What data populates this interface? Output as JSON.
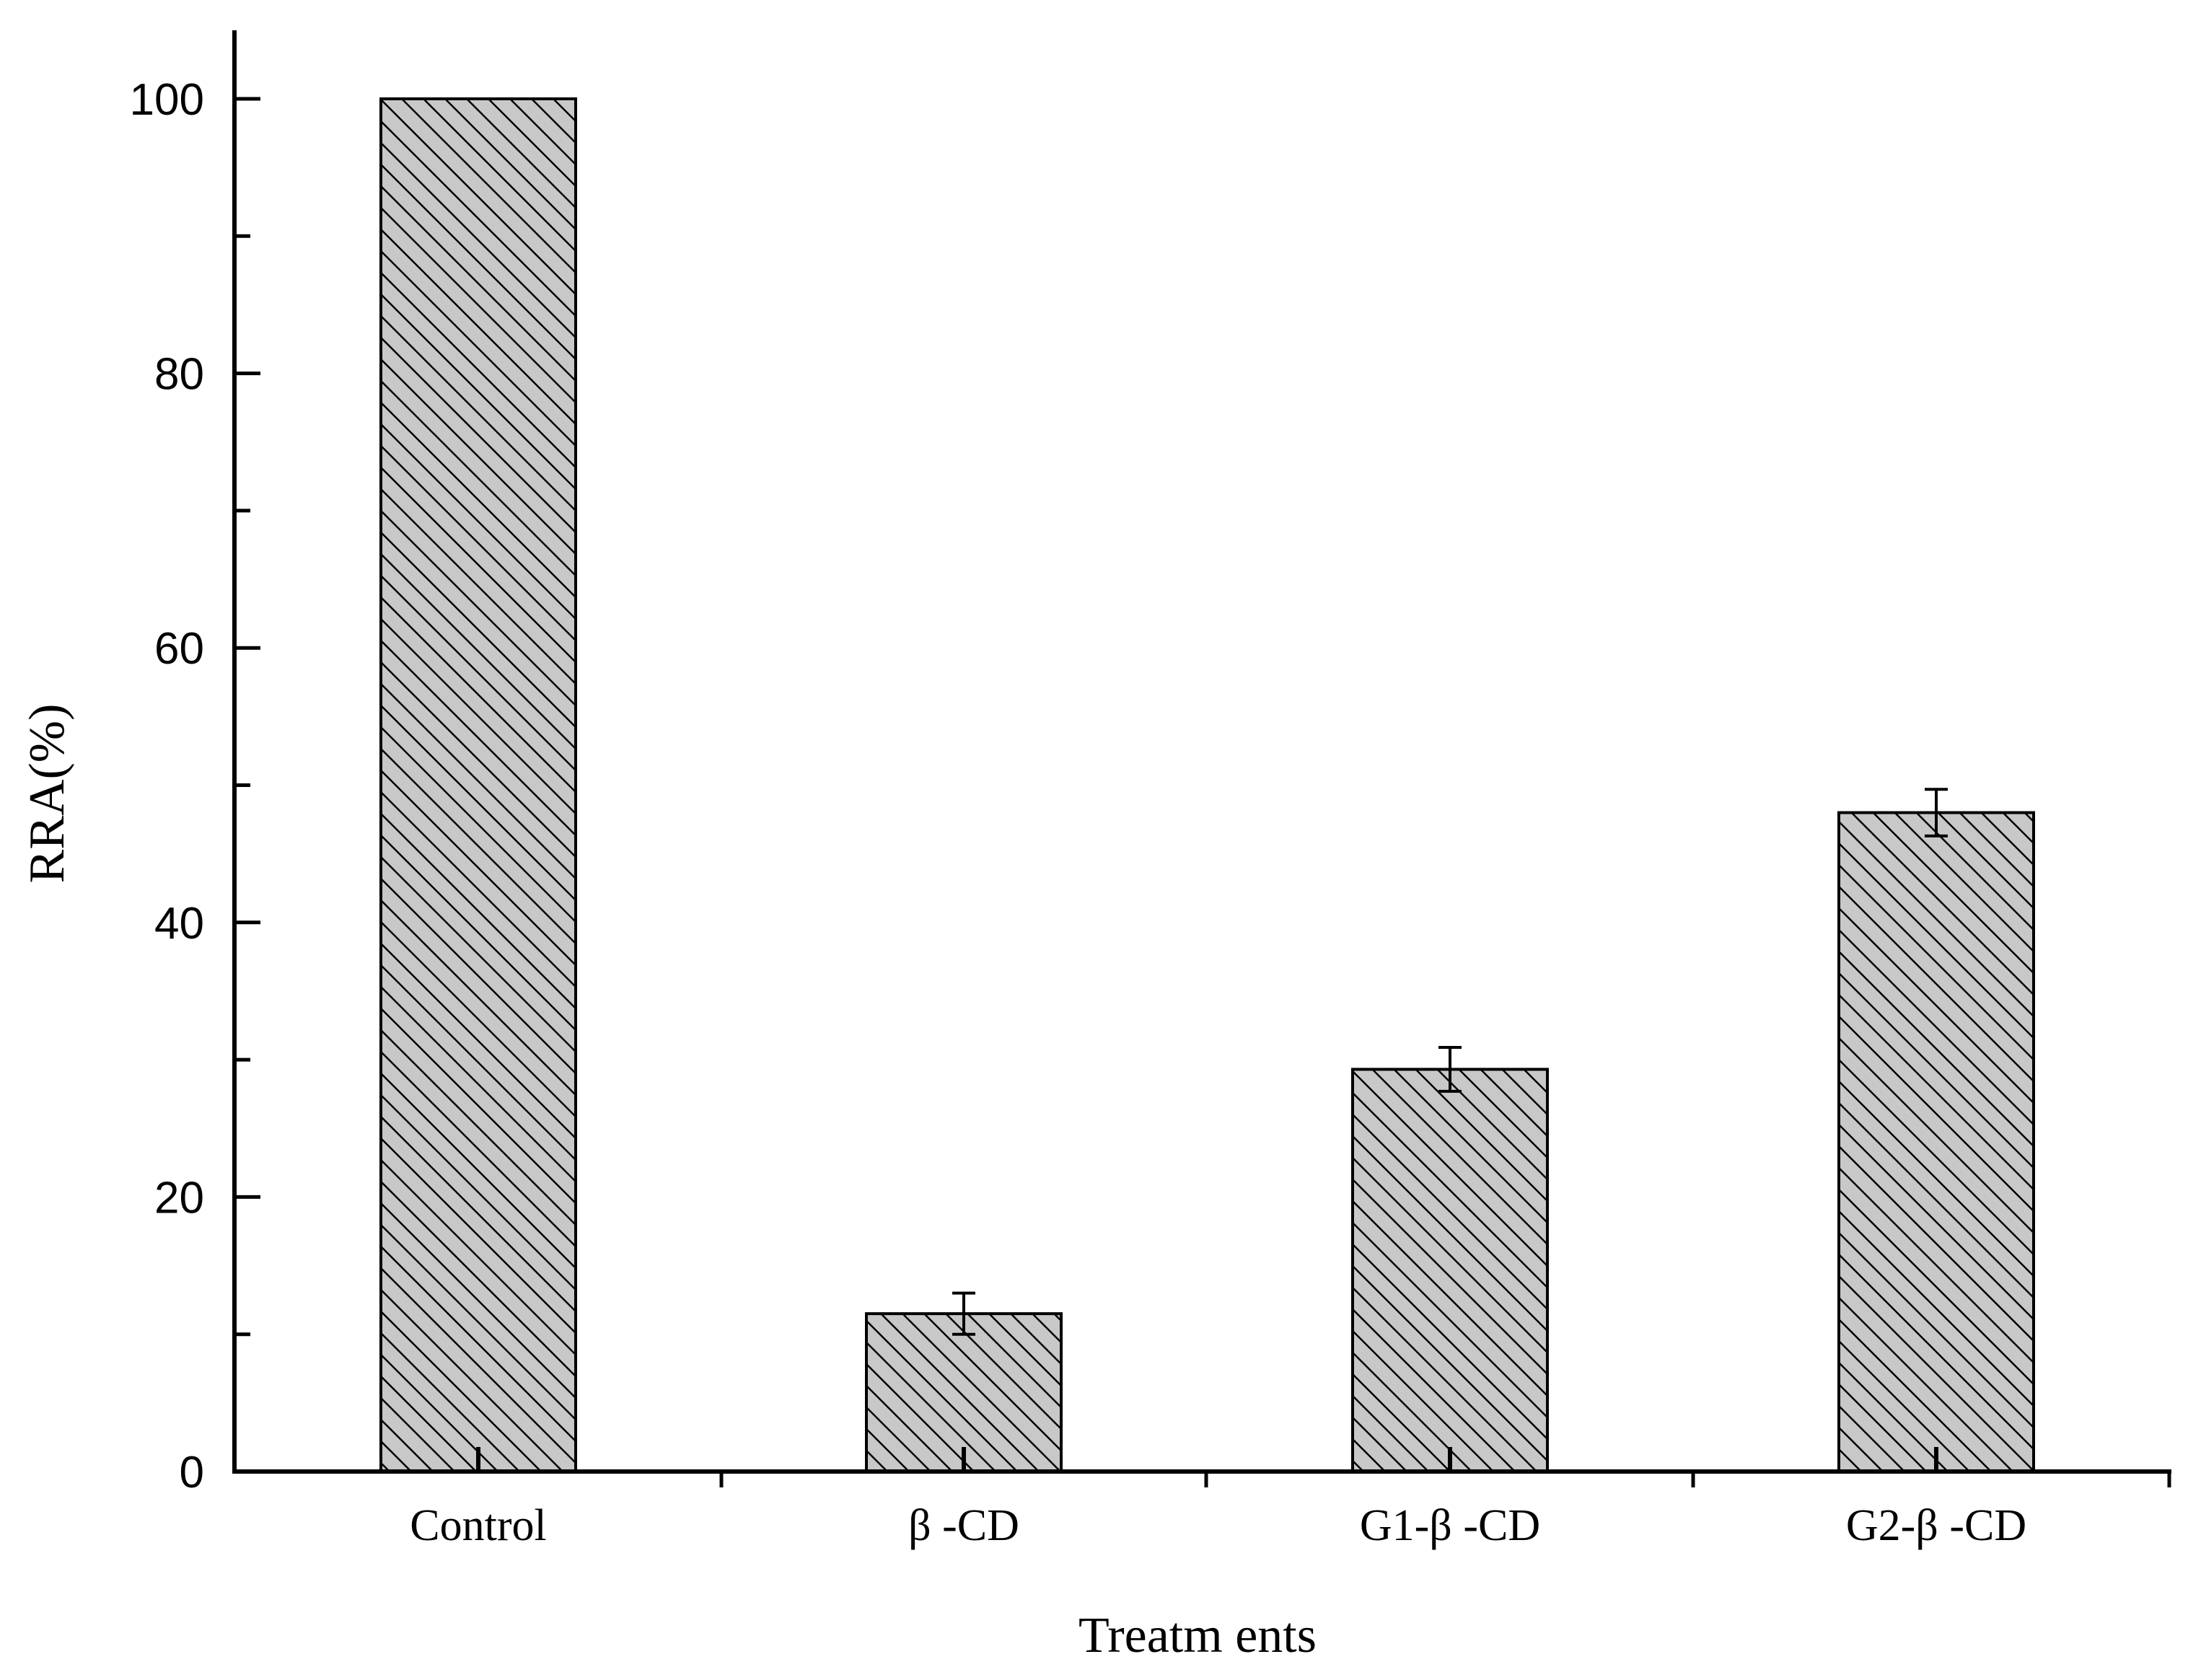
{
  "chart_data": {
    "type": "bar",
    "title": "",
    "xlabel": "Treatm ents",
    "ylabel": "RRA(%)",
    "categories": [
      "Control",
      "β -CD",
      "G1-β -CD",
      "G2-β -CD"
    ],
    "values": [
      100,
      11.5,
      29.3,
      48
    ],
    "errors": [
      0,
      1.5,
      1.6,
      1.7
    ],
    "ylim": [
      0,
      105
    ],
    "yticks": [
      "0",
      "20",
      "40",
      "60",
      "80",
      "100"
    ],
    "ytick_values": [
      0,
      20,
      40,
      60,
      80,
      100
    ],
    "grid": false,
    "legend": "none",
    "bar_fill": "#c8c8c8",
    "bar_hatch": "diagonal-back-slash",
    "colors": {
      "bar": "#c8c8c8",
      "hatch": "#000000",
      "axis": "#000000"
    }
  }
}
